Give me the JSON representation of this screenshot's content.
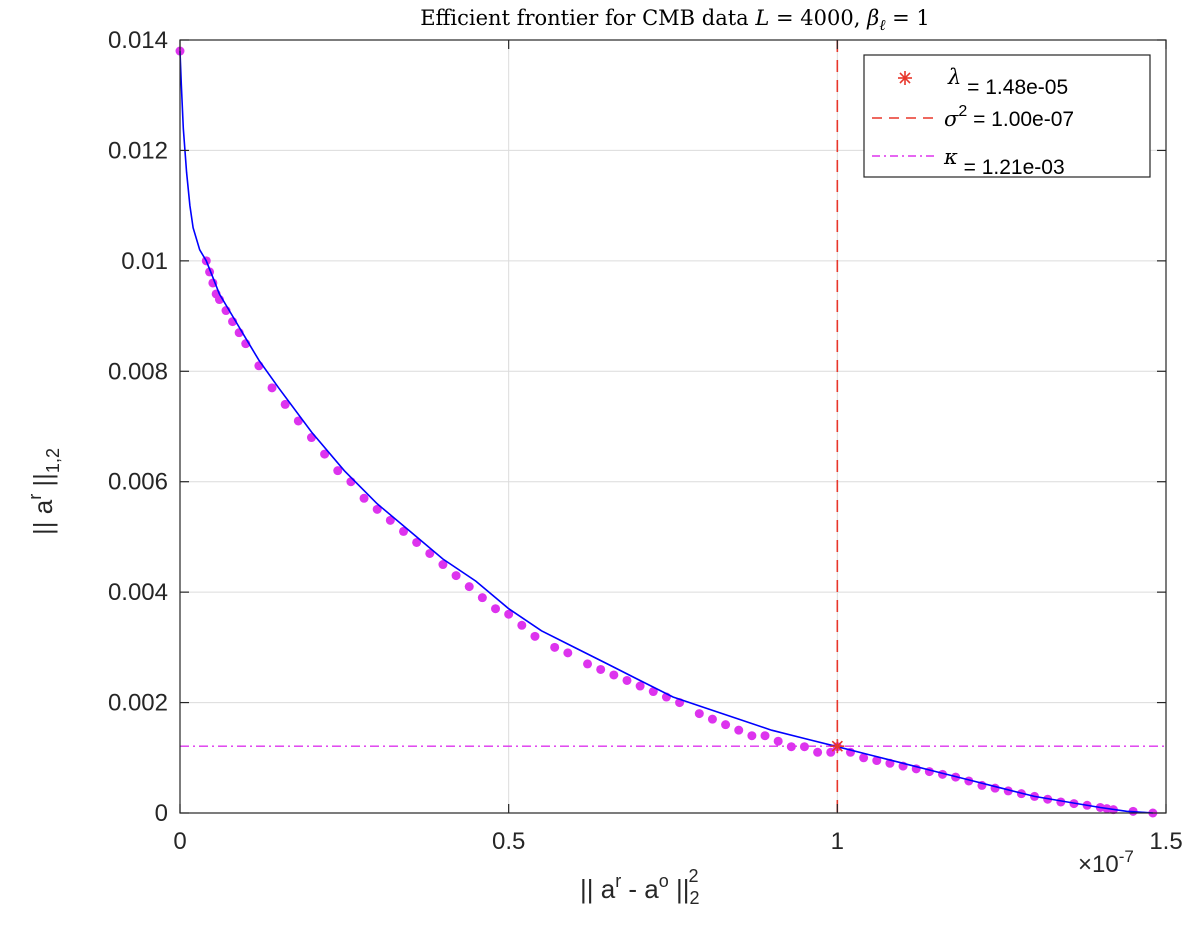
{
  "chart_data": {
    "type": "scatter",
    "title": "Efficient frontier for CMB data L = 4000, β_ℓ = 1",
    "title_parts": {
      "prefix": "Efficient frontier for CMB data ",
      "L": "L",
      "L_value": " = 4000, ",
      "beta": "β",
      "beta_sub": "ℓ",
      "beta_value": " = 1"
    },
    "xlabel": "|| a^r - a^o ||_2^2",
    "xlabel_parts": {
      "a": "|| a",
      "r": "r",
      "mid": " - a",
      "o": "o",
      "end": " ||",
      "sub": "2",
      "sup": "2"
    },
    "ylabel": "|| a^r ||_{1,2}",
    "ylabel_parts": {
      "a": "|| a",
      "r": "r",
      "end": " ||",
      "sub": "1,2"
    },
    "xlim": [
      0,
      1.5
    ],
    "ylim": [
      0,
      0.014
    ],
    "x_exponent_label": "×10",
    "x_exponent_power": "-7",
    "xticks": [
      0,
      0.5,
      1,
      1.5
    ],
    "xtick_labels": [
      "0",
      "0.5",
      "1",
      "1.5"
    ],
    "yticks": [
      0,
      0.002,
      0.004,
      0.006,
      0.008,
      0.01,
      0.012,
      0.014
    ],
    "ytick_labels": [
      "0",
      "0.002",
      "0.004",
      "0.006",
      "0.008",
      "0.01",
      "0.012",
      "0.014"
    ],
    "grid": true,
    "legend_position": "top-right",
    "frontier_curve": {
      "x": [
        0,
        0.002,
        0.005,
        0.01,
        0.015,
        0.02,
        0.03,
        0.04,
        0.05,
        0.06,
        0.08,
        0.1,
        0.12,
        0.15,
        0.2,
        0.25,
        0.3,
        0.35,
        0.4,
        0.45,
        0.5,
        0.55,
        0.6,
        0.65,
        0.7,
        0.75,
        0.8,
        0.85,
        0.9,
        0.95,
        1.0,
        1.05,
        1.1,
        1.15,
        1.2,
        1.25,
        1.3,
        1.35,
        1.4,
        1.44,
        1.48
      ],
      "y": [
        0.0138,
        0.0132,
        0.0124,
        0.0116,
        0.011,
        0.0106,
        0.0102,
        0.01,
        0.0097,
        0.0094,
        0.009,
        0.0086,
        0.0082,
        0.0077,
        0.0069,
        0.0062,
        0.0056,
        0.0051,
        0.0046,
        0.0042,
        0.0037,
        0.0033,
        0.003,
        0.0027,
        0.0024,
        0.0021,
        0.0019,
        0.0017,
        0.0015,
        0.00135,
        0.0012,
        0.00105,
        0.0009,
        0.00075,
        0.0006,
        0.00045,
        0.0003,
        0.0002,
        0.0001,
        3e-05,
        0
      ],
      "color": "#0000ff"
    },
    "marker_color": "#dd33ee",
    "marker_points": {
      "x": [
        0,
        0.04,
        0.045,
        0.05,
        0.055,
        0.06,
        0.07,
        0.08,
        0.09,
        0.1,
        0.12,
        0.14,
        0.16,
        0.18,
        0.2,
        0.22,
        0.24,
        0.26,
        0.28,
        0.3,
        0.32,
        0.34,
        0.36,
        0.38,
        0.4,
        0.42,
        0.44,
        0.46,
        0.48,
        0.5,
        0.52,
        0.54,
        0.57,
        0.59,
        0.62,
        0.64,
        0.66,
        0.68,
        0.7,
        0.72,
        0.74,
        0.76,
        0.79,
        0.81,
        0.83,
        0.85,
        0.87,
        0.89,
        0.91,
        0.93,
        0.95,
        0.97,
        0.99,
        1.0,
        1.02,
        1.04,
        1.06,
        1.08,
        1.1,
        1.12,
        1.14,
        1.16,
        1.18,
        1.2,
        1.22,
        1.24,
        1.26,
        1.28,
        1.3,
        1.32,
        1.34,
        1.36,
        1.38,
        1.4,
        1.41,
        1.42,
        1.45,
        1.48
      ],
      "y": [
        0.0138,
        0.01,
        0.0098,
        0.0096,
        0.0094,
        0.0093,
        0.0091,
        0.0089,
        0.0087,
        0.0085,
        0.0081,
        0.0077,
        0.0074,
        0.0071,
        0.0068,
        0.0065,
        0.0062,
        0.006,
        0.0057,
        0.0055,
        0.0053,
        0.0051,
        0.0049,
        0.0047,
        0.0045,
        0.0043,
        0.0041,
        0.0039,
        0.0037,
        0.0036,
        0.0034,
        0.0032,
        0.003,
        0.0029,
        0.0027,
        0.0026,
        0.0025,
        0.0024,
        0.0023,
        0.0022,
        0.0021,
        0.002,
        0.0018,
        0.0017,
        0.0016,
        0.0015,
        0.0014,
        0.0014,
        0.0013,
        0.0012,
        0.0012,
        0.0011,
        0.0011,
        0.0012,
        0.0011,
        0.001,
        0.00095,
        0.0009,
        0.00085,
        0.0008,
        0.00075,
        0.0007,
        0.00065,
        0.00058,
        0.0005,
        0.00045,
        0.0004,
        0.00035,
        0.0003,
        0.00025,
        0.0002,
        0.00017,
        0.00014,
        0.0001,
        8e-05,
        6e-05,
        3e-05,
        0
      ]
    },
    "legend": [
      {
        "symbol": "λ",
        "sup": "",
        "text": " = 1.48e-05",
        "style": "star",
        "color": "#e8362a"
      },
      {
        "symbol": "σ",
        "sup": "2",
        "text": " = 1.00e-07",
        "style": "dashed",
        "color": "#e8362a"
      },
      {
        "symbol": "κ",
        "sup": "",
        "text": " = 1.21e-03",
        "style": "dashdot",
        "color": "#dd33ee"
      }
    ],
    "vertical_line": {
      "x": 1.0,
      "color": "#e8362a"
    },
    "horizontal_line": {
      "y": 0.00121,
      "color": "#dd33ee"
    },
    "star_point": {
      "x": 1.0,
      "y": 0.00121,
      "color": "#e8362a"
    }
  }
}
